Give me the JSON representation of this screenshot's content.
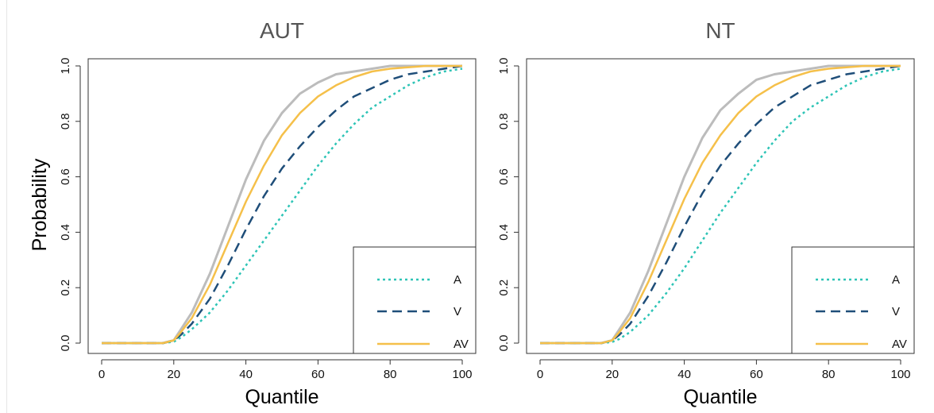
{
  "chart_data": [
    {
      "type": "line",
      "title": "AUT",
      "xlabel": "Quantile",
      "ylabel": "Probability",
      "xlim": [
        0,
        100
      ],
      "ylim": [
        0,
        1
      ],
      "xticks": [
        "0",
        "20",
        "40",
        "60",
        "80",
        "100"
      ],
      "yticks": [
        "0.0",
        "0.2",
        "0.4",
        "0.6",
        "0.8",
        "1.0"
      ],
      "legend": {
        "position": "bottom-right",
        "entries": [
          "A",
          "V",
          "AV"
        ]
      },
      "series": [
        {
          "name": "A",
          "color": "#2ec4b6",
          "style": "dotted",
          "x": [
            0,
            17,
            20,
            22,
            25,
            30,
            35,
            40,
            45,
            50,
            55,
            60,
            65,
            70,
            75,
            80,
            85,
            90,
            95,
            100
          ],
          "y": [
            0,
            0,
            0.005,
            0.02,
            0.05,
            0.11,
            0.19,
            0.28,
            0.37,
            0.46,
            0.55,
            0.64,
            0.72,
            0.79,
            0.85,
            0.89,
            0.93,
            0.96,
            0.98,
            0.99
          ]
        },
        {
          "name": "V",
          "color": "#1f4e79",
          "style": "dashed",
          "x": [
            0,
            17,
            20,
            22,
            25,
            30,
            35,
            40,
            45,
            50,
            55,
            60,
            65,
            70,
            75,
            80,
            85,
            90,
            95,
            100
          ],
          "y": [
            0,
            0,
            0.01,
            0.03,
            0.07,
            0.16,
            0.28,
            0.41,
            0.53,
            0.63,
            0.71,
            0.78,
            0.84,
            0.89,
            0.92,
            0.95,
            0.97,
            0.98,
            0.99,
            1.0
          ]
        },
        {
          "name": "AV",
          "color": "#f5c04a",
          "style": "solid",
          "x": [
            0,
            17,
            20,
            22,
            25,
            30,
            35,
            40,
            45,
            50,
            55,
            60,
            65,
            70,
            75,
            80,
            85,
            90,
            95,
            100
          ],
          "y": [
            0,
            0,
            0.01,
            0.04,
            0.09,
            0.21,
            0.36,
            0.51,
            0.64,
            0.75,
            0.83,
            0.89,
            0.93,
            0.96,
            0.98,
            0.99,
            0.995,
            1.0,
            1.0,
            1.0
          ]
        },
        {
          "name": "",
          "color": "#bcbcbc",
          "style": "solid",
          "x": [
            0,
            17,
            20,
            22,
            25,
            30,
            35,
            40,
            45,
            50,
            55,
            60,
            65,
            70,
            75,
            80,
            85,
            90,
            95,
            100
          ],
          "y": [
            0,
            0,
            0.01,
            0.05,
            0.11,
            0.25,
            0.42,
            0.59,
            0.73,
            0.83,
            0.9,
            0.94,
            0.97,
            0.98,
            0.99,
            1.0,
            1.0,
            1.0,
            1.0,
            1.0
          ]
        }
      ]
    },
    {
      "type": "line",
      "title": "NT",
      "xlabel": "Quantile",
      "ylabel": "",
      "xlim": [
        0,
        100
      ],
      "ylim": [
        0,
        1
      ],
      "xticks": [
        "0",
        "20",
        "40",
        "60",
        "80",
        "100"
      ],
      "yticks": [
        "0.0",
        "0.2",
        "0.4",
        "0.6",
        "0.8",
        "1.0"
      ],
      "legend": {
        "position": "bottom-right",
        "entries": [
          "A",
          "V",
          "AV"
        ]
      },
      "series": [
        {
          "name": "A",
          "color": "#2ec4b6",
          "style": "dotted",
          "x": [
            0,
            17,
            20,
            22,
            25,
            30,
            35,
            40,
            45,
            50,
            55,
            60,
            65,
            70,
            75,
            80,
            85,
            90,
            95,
            100
          ],
          "y": [
            0,
            0,
            0.004,
            0.015,
            0.04,
            0.1,
            0.18,
            0.27,
            0.37,
            0.47,
            0.56,
            0.65,
            0.73,
            0.8,
            0.85,
            0.89,
            0.93,
            0.96,
            0.98,
            0.99
          ]
        },
        {
          "name": "V",
          "color": "#1f4e79",
          "style": "dashed",
          "x": [
            0,
            17,
            20,
            22,
            25,
            30,
            35,
            40,
            45,
            50,
            55,
            60,
            65,
            70,
            75,
            80,
            85,
            90,
            95,
            100
          ],
          "y": [
            0,
            0,
            0.01,
            0.03,
            0.07,
            0.17,
            0.29,
            0.42,
            0.54,
            0.64,
            0.72,
            0.79,
            0.85,
            0.89,
            0.93,
            0.95,
            0.97,
            0.98,
            0.99,
            1.0
          ]
        },
        {
          "name": "AV",
          "color": "#f5c04a",
          "style": "solid",
          "x": [
            0,
            17,
            20,
            22,
            25,
            30,
            35,
            40,
            45,
            50,
            55,
            60,
            65,
            70,
            75,
            80,
            85,
            90,
            95,
            100
          ],
          "y": [
            0,
            0,
            0.01,
            0.04,
            0.09,
            0.22,
            0.37,
            0.52,
            0.65,
            0.75,
            0.83,
            0.89,
            0.93,
            0.96,
            0.98,
            0.99,
            0.995,
            1.0,
            1.0,
            1.0
          ]
        },
        {
          "name": "",
          "color": "#bcbcbc",
          "style": "solid",
          "x": [
            0,
            17,
            20,
            22,
            25,
            30,
            35,
            40,
            45,
            50,
            55,
            60,
            65,
            70,
            75,
            80,
            85,
            90,
            95,
            100
          ],
          "y": [
            0,
            0,
            0.01,
            0.05,
            0.11,
            0.26,
            0.43,
            0.6,
            0.74,
            0.84,
            0.9,
            0.95,
            0.97,
            0.98,
            0.99,
            1.0,
            1.0,
            1.0,
            1.0,
            1.0
          ]
        }
      ]
    }
  ]
}
